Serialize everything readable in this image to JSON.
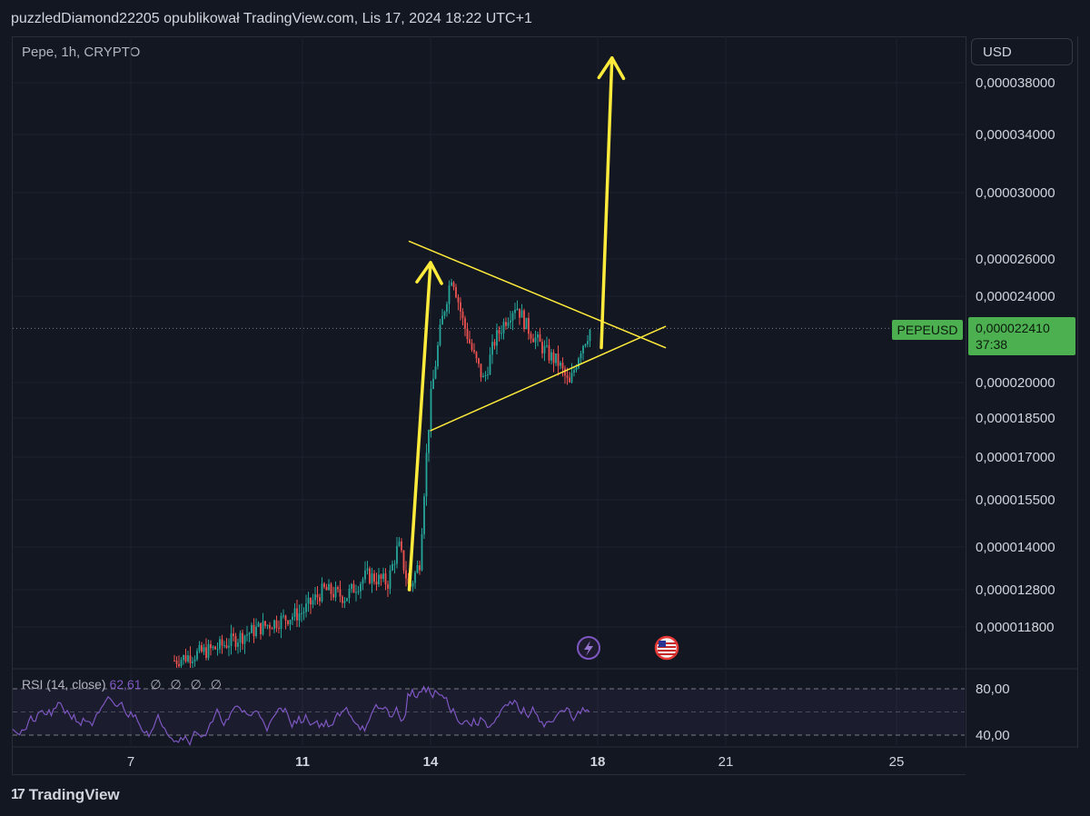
{
  "header": {
    "author_line": "puzzledDiamond22205 opublikował TradingView.com, Lis 17, 2024 18:22 UTC+1"
  },
  "symbol": {
    "label": "Pepe, 1h, CRYPTO"
  },
  "currency_button": "USD",
  "price_tag": {
    "ticker": "PEPEUSD",
    "price": "0,000022410",
    "countdown": "37:38"
  },
  "rsi": {
    "label": "RSI (14, close)",
    "value": "62,61",
    "placeholders": [
      "∅",
      "∅",
      "∅",
      "∅"
    ],
    "levels": [
      "80,00",
      "40,00"
    ]
  },
  "footer": {
    "brand": "TradingView"
  },
  "colors": {
    "background": "#131722",
    "up": "#26a69a",
    "down": "#ef5350",
    "drawing": "#ffeb3b",
    "rsi": "#7e57c2",
    "price_tag": "#4caf50"
  },
  "icons": [
    "lightning-event-icon",
    "us-flag-event-icon"
  ],
  "chart_data": {
    "type": "candlestick",
    "title": "Pepe, 1h, CRYPTO",
    "x_tick_labels": [
      "7",
      "11",
      "14",
      "18",
      "21",
      "25"
    ],
    "y_tick_labels": [
      "0,000038000",
      "0,000034000",
      "0,000030000",
      "0,000026000",
      "0,000024000",
      "0,000020000",
      "0,000018500",
      "0,000017000",
      "0,000015500",
      "0,000014000",
      "0,000012800",
      "0,000011800"
    ],
    "y_scale": "log",
    "last_price": 2.241e-05,
    "series": {
      "close_path": [
        [
          "Nov 8",
          1.1e-05
        ],
        [
          "Nov 9",
          1.13e-05
        ],
        [
          "Nov 10",
          1.18e-05
        ],
        [
          "Nov 11",
          1.22e-05
        ],
        [
          "Nov 11 12h",
          1.28e-05
        ],
        [
          "Nov 12",
          1.26e-05
        ],
        [
          "Nov 12 12h",
          1.32e-05
        ],
        [
          "Nov 13 00h",
          1.3e-05
        ],
        [
          "Nov 13 06h",
          1.41e-05
        ],
        [
          "Nov 13 12h",
          1.28e-05
        ],
        [
          "Nov 13 18h",
          1.36e-05
        ],
        [
          "Nov 14 00h",
          1.92e-05
        ],
        [
          "Nov 14 06h",
          2.26e-05
        ],
        [
          "Nov 14 12h",
          2.52e-05
        ],
        [
          "Nov 14 18h",
          2.28e-05
        ],
        [
          "Nov 15 00h",
          2.12e-05
        ],
        [
          "Nov 15 06h",
          2e-05
        ],
        [
          "Nov 15 12h",
          2.18e-05
        ],
        [
          "Nov 15 18h",
          2.28e-05
        ],
        [
          "Nov 16 00h",
          2.36e-05
        ],
        [
          "Nov 16 06h",
          2.25e-05
        ],
        [
          "Nov 16 12h",
          2.18e-05
        ],
        [
          "Nov 16 18h",
          2.12e-05
        ],
        [
          "Nov 17 00h",
          2.08e-05
        ],
        [
          "Nov 17 06h",
          1.98e-05
        ],
        [
          "Nov 17 12h",
          2.14e-05
        ],
        [
          "Nov 17 18h",
          2.24e-05
        ]
      ]
    },
    "rsi_levels": [
      80,
      40
    ],
    "rsi_last": 62.61,
    "drawings": {
      "triangle_upper": [
        [
          "Nov 13 12h",
          2.7e-05
        ],
        [
          "Nov 19 12h",
          2.15e-05
        ]
      ],
      "triangle_lower": [
        [
          "Nov 14 00h",
          1.8e-05
        ],
        [
          "Nov 19 12h",
          2.25e-05
        ]
      ],
      "arrow_flagpole": [
        [
          "Nov 13 12h",
          1.28e-05
        ],
        [
          "Nov 14 00h",
          2.58e-05
        ]
      ],
      "arrow_target": [
        [
          "Nov 18 00h",
          2.15e-05
        ],
        [
          "Nov 18 06h",
          4e-05
        ]
      ]
    }
  }
}
